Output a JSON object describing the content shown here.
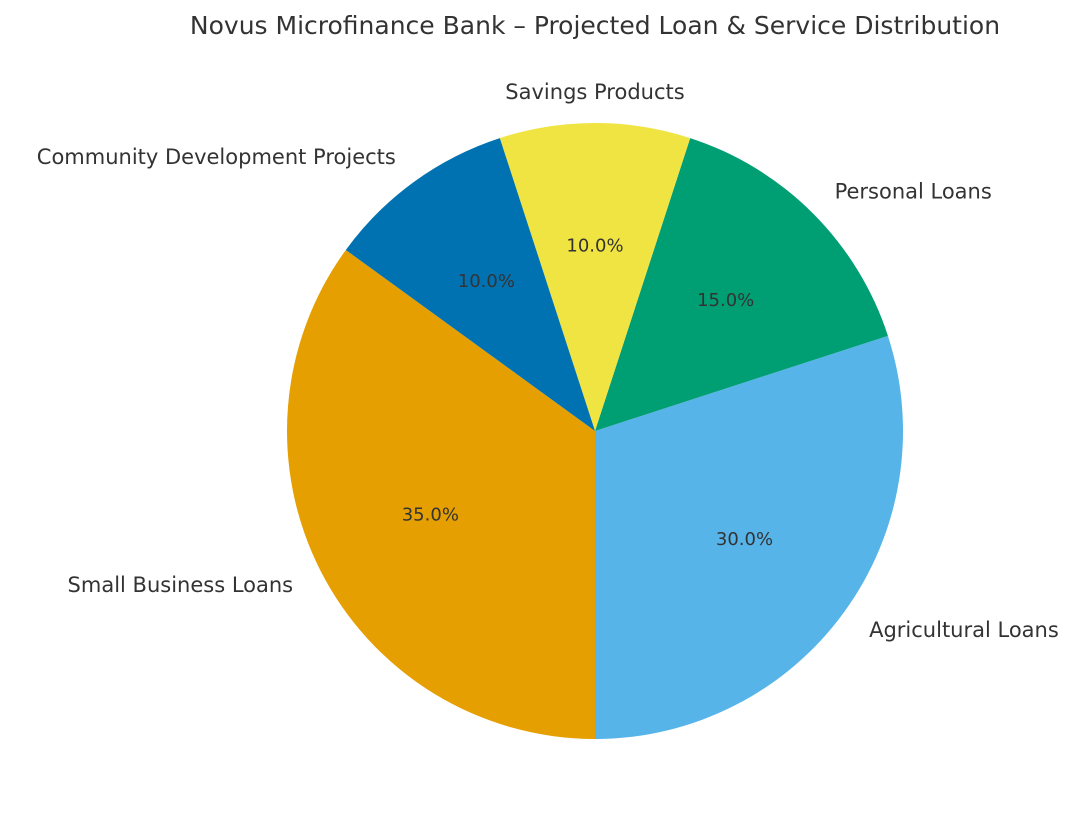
{
  "chart_data": {
    "type": "pie",
    "title": "Novus Microfinance Bank – Projected Loan & Service Distribution",
    "slices": [
      {
        "label": "Small Business Loans",
        "value": 35.0,
        "pct_label": "35.0%",
        "color": "#E69F00"
      },
      {
        "label": "Agricultural Loans",
        "value": 30.0,
        "pct_label": "30.0%",
        "color": "#56B4E9"
      },
      {
        "label": "Personal Loans",
        "value": 15.0,
        "pct_label": "15.0%",
        "color": "#009E73"
      },
      {
        "label": "Savings Products",
        "value": 10.0,
        "pct_label": "10.0%",
        "color": "#F0E442"
      },
      {
        "label": "Community Development Projects",
        "value": 10.0,
        "pct_label": "10.0%",
        "color": "#0072B2"
      }
    ],
    "start_angle_deg": 144,
    "direction": "counterclockwise"
  }
}
